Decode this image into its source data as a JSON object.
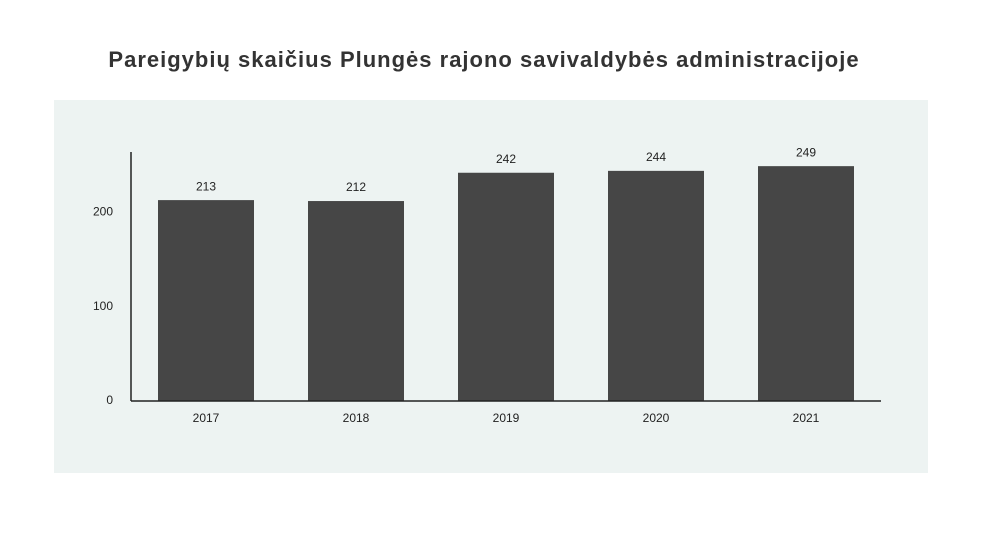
{
  "chart_data": {
    "type": "bar",
    "title": "Pareigybių skaičius Plungės rajono savivaldybės administracijoje",
    "categories": [
      "2017",
      "2018",
      "2019",
      "2020",
      "2021"
    ],
    "values": [
      213,
      212,
      242,
      244,
      249
    ],
    "color": "#464646",
    "ylim": [
      0,
      264
    ],
    "yticks": [
      0,
      100,
      200
    ],
    "grid": false
  }
}
